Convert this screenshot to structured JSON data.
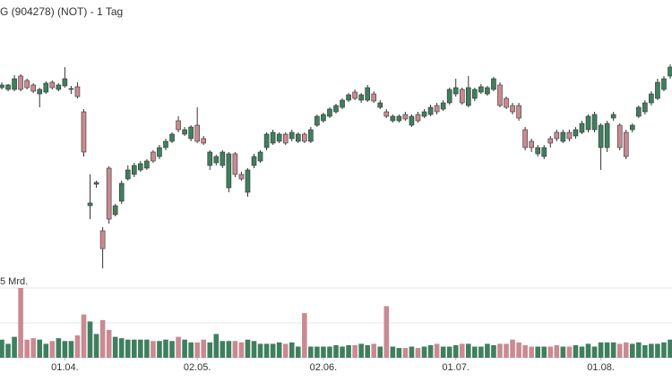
{
  "chart_data": [
    {
      "type": "candlestick",
      "title": "G (904278) (NOT) - 1 Tag",
      "up_color": "#3f7f5f",
      "down_color": "#c98a92",
      "ylim": [
        0,
        320
      ],
      "categories": [
        null,
        null,
        null,
        null,
        null,
        null,
        null,
        null,
        null,
        null,
        "01.04.",
        null,
        null,
        null,
        null,
        null,
        null,
        null,
        null,
        null,
        null,
        null,
        null,
        null,
        null,
        null,
        null,
        null,
        null,
        null,
        null,
        "02.05.",
        null,
        null,
        null,
        null,
        null,
        null,
        null,
        null,
        null,
        null,
        null,
        null,
        null,
        null,
        null,
        null,
        null,
        null,
        null,
        "02.06.",
        null,
        null,
        null,
        null,
        null,
        null,
        null,
        null,
        null,
        null,
        null,
        null,
        null,
        null,
        null,
        null,
        null,
        null,
        null,
        null,
        "01.07.",
        null,
        null,
        null,
        null,
        null,
        null,
        null,
        null,
        null,
        null,
        null,
        null,
        null,
        null,
        null,
        null,
        null,
        null,
        null,
        null,
        null,
        null,
        "01.08.",
        null,
        null,
        null,
        null,
        null,
        null,
        null,
        null,
        null,
        null,
        null
      ],
      "open": [
        222,
        220,
        220,
        235,
        230,
        225,
        215,
        217,
        228,
        220,
        224,
        220,
        223,
        195,
        90,
        114,
        62,
        132,
        80,
        95,
        120,
        125,
        130,
        132,
        150,
        145,
        155,
        162,
        185,
        170,
        165,
        180,
        165,
        135,
        138,
        135,
        110,
        148,
        125,
        105,
        135,
        140,
        155,
        160,
        162,
        170,
        165,
        162,
        170,
        162,
        180,
        185,
        190,
        195,
        200,
        208,
        217,
        208,
        208,
        215,
        200,
        195,
        185,
        185,
        192,
        180,
        192,
        190,
        192,
        202,
        198,
        205,
        215,
        220,
        202,
        210,
        217,
        215,
        220,
        225,
        210,
        202,
        202,
        175,
        162,
        148,
        145,
        165,
        172,
        162,
        172,
        168,
        172,
        175,
        175,
        155,
        155,
        188,
        180,
        172,
        175,
        190,
        195,
        205,
        210,
        220,
        235
      ],
      "high": [
        228,
        226,
        236,
        237,
        232,
        227,
        222,
        229,
        230,
        227,
        245,
        224,
        228,
        198,
        125,
        118,
        66,
        134,
        92,
        118,
        135,
        138,
        140,
        142,
        152,
        158,
        165,
        172,
        190,
        178,
        180,
        200,
        168,
        152,
        147,
        152,
        150,
        150,
        128,
        132,
        148,
        152,
        172,
        175,
        172,
        172,
        175,
        172,
        172,
        178,
        192,
        194,
        200,
        204,
        210,
        216,
        220,
        216,
        225,
        218,
        208,
        198,
        192,
        192,
        195,
        192,
        195,
        198,
        203,
        205,
        208,
        222,
        232,
        222,
        235,
        222,
        226,
        224,
        234,
        228,
        212,
        205,
        205,
        178,
        165,
        158,
        158,
        168,
        175,
        175,
        175,
        178,
        185,
        192,
        195,
        182,
        185,
        195,
        182,
        175,
        182,
        202,
        208,
        218,
        232,
        235,
        248
      ],
      "low": [
        220,
        218,
        218,
        218,
        220,
        216,
        200,
        215,
        220,
        218,
        222,
        215,
        210,
        145,
        75,
        110,
        20,
        70,
        78,
        92,
        118,
        122,
        128,
        130,
        138,
        142,
        152,
        160,
        172,
        168,
        162,
        160,
        158,
        130,
        135,
        132,
        105,
        122,
        118,
        100,
        132,
        138,
        152,
        158,
        160,
        158,
        162,
        160,
        160,
        160,
        178,
        183,
        188,
        193,
        198,
        206,
        208,
        205,
        206,
        205,
        198,
        188,
        183,
        183,
        185,
        178,
        183,
        188,
        190,
        192,
        196,
        203,
        212,
        203,
        200,
        207,
        215,
        213,
        218,
        200,
        198,
        192,
        185,
        152,
        150,
        145,
        142,
        155,
        162,
        160,
        162,
        165,
        170,
        172,
        172,
        130,
        150,
        185,
        152,
        142,
        172,
        188,
        192,
        202,
        208,
        218,
        232
      ],
      "close": [
        225,
        225,
        232,
        220,
        222,
        218,
        220,
        227,
        222,
        225,
        232,
        221,
        212,
        150,
        93,
        116,
        42,
        75,
        90,
        115,
        130,
        135,
        137,
        140,
        140,
        155,
        162,
        170,
        175,
        175,
        178,
        162,
        160,
        150,
        145,
        150,
        148,
        125,
        120,
        130,
        145,
        150,
        170,
        172,
        170,
        160,
        172,
        170,
        162,
        175,
        190,
        192,
        198,
        202,
        208,
        214,
        210,
        214,
        222,
        207,
        205,
        190,
        190,
        190,
        187,
        190,
        185,
        195,
        200,
        195,
        205,
        220,
        222,
        205,
        222,
        220,
        223,
        222,
        232,
        202,
        200,
        195,
        188,
        155,
        155,
        155,
        155,
        160,
        165,
        172,
        165,
        175,
        182,
        190,
        192,
        180,
        182,
        192,
        155,
        145,
        180,
        200,
        205,
        215,
        228,
        232,
        245
      ]
    },
    {
      "type": "bar",
      "ylim": [
        0,
        5
      ],
      "yticks": [
        2.5,
        {
          "value": 5,
          "label": "5 Mrd."
        }
      ],
      "values": [
        1.3,
        1.0,
        1.5,
        5.0,
        1.3,
        1.4,
        1.3,
        1.0,
        1.2,
        1.4,
        1.2,
        1.2,
        1.6,
        3.1,
        2.6,
        1.7,
        2.7,
        2.0,
        1.5,
        1.4,
        1.3,
        1.3,
        1.3,
        1.3,
        1.2,
        1.2,
        1.3,
        1.2,
        1.5,
        1.3,
        1.1,
        1.1,
        1.3,
        1.1,
        1.7,
        1.2,
        1.2,
        1.2,
        1.1,
        1.3,
        1.2,
        1.0,
        1.0,
        1.0,
        1.1,
        1.0,
        1.1,
        0.8,
        3.2,
        0.8,
        0.8,
        0.8,
        0.8,
        0.9,
        0.8,
        0.9,
        0.9,
        1.0,
        0.9,
        1.0,
        0.8,
        3.7,
        0.8,
        0.7,
        0.7,
        0.8,
        0.7,
        0.8,
        0.9,
        1.0,
        0.8,
        0.8,
        0.9,
        1.0,
        1.0,
        0.8,
        0.8,
        1.0,
        0.9,
        1.0,
        1.0,
        1.3,
        1.1,
        0.9,
        0.8,
        0.8,
        0.8,
        0.8,
        0.9,
        0.8,
        0.8,
        0.9,
        0.8,
        1.0,
        0.8,
        1.1,
        1.1,
        1.1,
        1.0,
        1.1,
        1.0,
        1.1,
        0.9,
        1.0,
        1.0,
        1.1,
        1.3
      ]
    }
  ]
}
